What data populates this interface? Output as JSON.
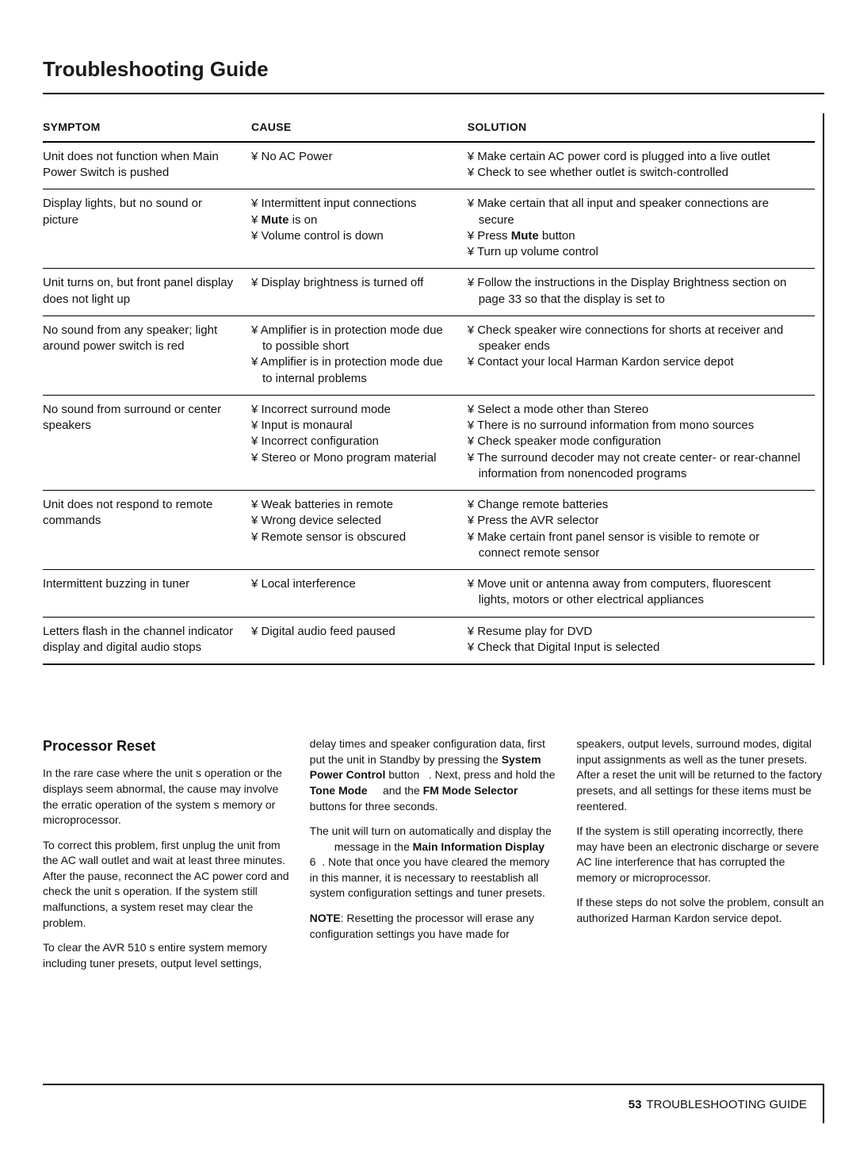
{
  "title": "Troubleshooting Guide",
  "table": {
    "headers": {
      "symptom": "SYMPTOM",
      "cause": "CAUSE",
      "solution": "SOLUTION"
    },
    "rows": [
      {
        "symptom": "Unit does not function when Main Power Switch is pushed",
        "causes": [
          "No AC Power"
        ],
        "solutions": [
          "Make certain AC power cord is plugged into a live outlet",
          "Check to see whether outlet is switch-controlled"
        ]
      },
      {
        "symptom": "Display lights, but no sound or picture",
        "causes": [
          "Intermittent input connections",
          "<b>Mute</b> is on",
          "Volume control is down"
        ],
        "solutions": [
          "Make certain that all input and speaker connections are secure",
          "Press <b>Mute</b> button",
          "Turn up volume control"
        ]
      },
      {
        "symptom": "Unit turns on, but front panel display does not light up",
        "causes": [
          "Display brightness is turned off"
        ],
        "solutions": [
          "Follow the instructions in the Display Brightness section on page 33 so that the display is set to"
        ]
      },
      {
        "symptom": "No sound from any speaker; light around power switch is red",
        "causes": [
          "Amplifier is in protection mode due to possible short",
          "Amplifier is in protection mode due to internal problems"
        ],
        "solutions": [
          "Check speaker wire connections for shorts at receiver and speaker ends",
          "Contact your local Harman Kardon service depot"
        ]
      },
      {
        "symptom": "No sound from surround or center speakers",
        "causes": [
          "Incorrect surround mode",
          "Input is monaural",
          "Incorrect configuration",
          "Stereo or Mono program material"
        ],
        "solutions": [
          "Select a mode other than Stereo",
          "There is no surround information from mono sources",
          "Check speaker mode configuration",
          "The surround decoder may not create center- or rear-channel information from nonencoded programs"
        ]
      },
      {
        "symptom": "Unit does not respond to remote commands",
        "causes": [
          "Weak batteries in remote",
          "Wrong device selected",
          "Remote sensor is obscured"
        ],
        "solutions": [
          "Change remote batteries",
          "Press the AVR selector",
          "Make certain front panel sensor is visible to remote or connect remote sensor"
        ]
      },
      {
        "symptom": "Intermittent buzzing in tuner",
        "causes": [
          "Local interference"
        ],
        "solutions": [
          "Move unit or antenna away from computers, fluorescent lights, motors or other electrical appliances"
        ]
      },
      {
        "symptom": "Letters flash in the channel indicator display and digital audio stops",
        "causes": [
          "Digital audio feed paused"
        ],
        "solutions": [
          "Resume play for DVD",
          "Check that Digital Input is selected"
        ]
      }
    ]
  },
  "reset": {
    "heading": "Processor Reset",
    "col1": [
      "In the rare case where the unit s operation or the displays seem abnormal, the cause may involve the erratic operation of the system s memory or microprocessor.",
      "To correct this problem, first unplug the unit from the AC wall outlet and wait at least three minutes. After the pause, reconnect the AC power cord and check the unit s operation. If the system still malfunctions, a system reset may clear the problem.",
      "To clear the AVR 510 s entire system memory including tuner presets, output level settings,"
    ],
    "col2": [
      "delay times and speaker configuration data, first put the unit in Standby by pressing the <b>System Power Control</b> button &nbsp;&nbsp;. Next, press and hold the <b>Tone Mode</b> &nbsp;&nbsp;&nbsp; and the <b>FM Mode Selector</b> &nbsp;&nbsp;&nbsp; buttons for three seconds.",
      "The unit will turn on automatically and display the &nbsp;&nbsp;&nbsp;&nbsp;&nbsp;&nbsp;&nbsp; message in the <b>Main Information Display</b> 6&nbsp;&nbsp;. Note that once you have cleared the memory in this manner, it is necessary to reestablish all system configuration settings and tuner presets.",
      "<b>NOTE</b>: Resetting the processor will erase any configuration settings you have made for"
    ],
    "col3": [
      "speakers, output levels, surround modes, digital input assignments as well as the tuner presets. After a reset the unit will be returned to the factory presets, and all settings for these items must be reentered.",
      "If the system is still operating incorrectly, there may have been an electronic discharge or severe AC line interference that has corrupted the memory or microprocessor.",
      "If these steps do not solve the problem, consult an authorized Harman Kardon service depot."
    ]
  },
  "footer": {
    "page": "53",
    "label": "TROUBLESHOOTING GUIDE"
  }
}
